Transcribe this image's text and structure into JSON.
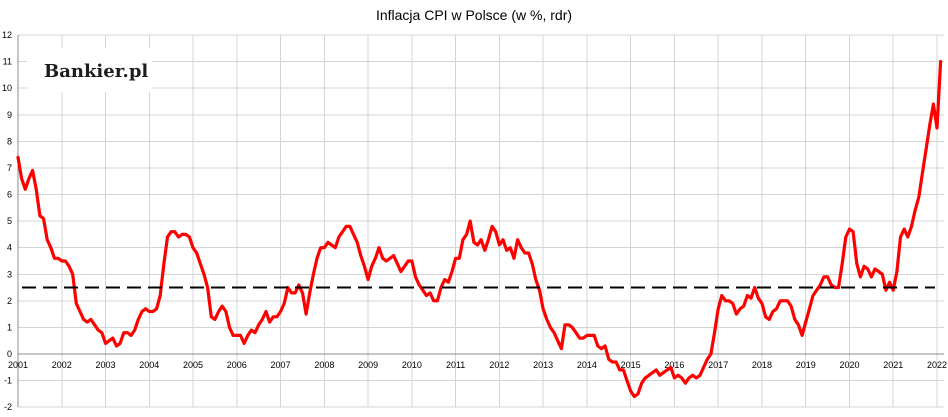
{
  "chart_data": {
    "type": "line",
    "title": "Inflacja CPI w Polsce (w %, rdr)",
    "brand_logo": "Bankier.pl",
    "xlabel": "",
    "ylabel": "",
    "ylim": [
      -2,
      12
    ],
    "yticks": [
      "12",
      "11",
      "10",
      "9",
      "8",
      "7",
      "6",
      "5",
      "4",
      "3",
      "2",
      "1",
      "0",
      "-1",
      "-2"
    ],
    "xticks": [
      "2001",
      "2002",
      "2003",
      "2004",
      "2005",
      "2006",
      "2007",
      "2008",
      "2009",
      "2010",
      "2011",
      "2012",
      "2013",
      "2014",
      "2015",
      "2016",
      "2017",
      "2018",
      "2019",
      "2020",
      "2021",
      "2022"
    ],
    "x_start_year": 2001,
    "grid": true,
    "series": [
      {
        "color": "#ff0000",
        "style": "solid",
        "values": [
          7.4,
          6.6,
          6.2,
          6.6,
          6.9,
          6.2,
          5.2,
          5.1,
          4.3,
          4.0,
          3.6,
          3.6,
          3.5,
          3.5,
          3.3,
          3.0,
          1.9,
          1.6,
          1.3,
          1.2,
          1.3,
          1.1,
          0.9,
          0.8,
          0.4,
          0.5,
          0.6,
          0.3,
          0.4,
          0.8,
          0.8,
          0.7,
          0.9,
          1.3,
          1.6,
          1.7,
          1.6,
          1.6,
          1.7,
          2.2,
          3.4,
          4.4,
          4.6,
          4.6,
          4.4,
          4.5,
          4.5,
          4.4,
          4.0,
          3.8,
          3.4,
          3.0,
          2.5,
          1.4,
          1.3,
          1.6,
          1.8,
          1.6,
          1.0,
          0.7,
          0.7,
          0.7,
          0.4,
          0.7,
          0.9,
          0.8,
          1.1,
          1.3,
          1.6,
          1.2,
          1.4,
          1.4,
          1.6,
          1.9,
          2.5,
          2.3,
          2.3,
          2.6,
          2.3,
          1.5,
          2.3,
          3.0,
          3.6,
          4.0,
          4.0,
          4.2,
          4.1,
          4.0,
          4.4,
          4.6,
          4.8,
          4.8,
          4.5,
          4.2,
          3.7,
          3.3,
          2.8,
          3.3,
          3.6,
          4.0,
          3.6,
          3.5,
          3.6,
          3.7,
          3.4,
          3.1,
          3.3,
          3.5,
          3.5,
          2.9,
          2.6,
          2.4,
          2.2,
          2.3,
          2.0,
          2.0,
          2.5,
          2.8,
          2.7,
          3.1,
          3.6,
          3.6,
          4.3,
          4.5,
          5.0,
          4.2,
          4.1,
          4.3,
          3.9,
          4.3,
          4.8,
          4.6,
          4.1,
          4.3,
          3.9,
          4.0,
          3.6,
          4.3,
          4.0,
          3.8,
          3.8,
          3.4,
          2.8,
          2.4,
          1.7,
          1.3,
          1.0,
          0.8,
          0.5,
          0.2,
          1.1,
          1.1,
          1.0,
          0.8,
          0.6,
          0.6,
          0.7,
          0.7,
          0.7,
          0.3,
          0.2,
          0.3,
          -0.2,
          -0.3,
          -0.3,
          -0.6,
          -0.6,
          -1.0,
          -1.4,
          -1.6,
          -1.5,
          -1.1,
          -0.9,
          -0.8,
          -0.7,
          -0.6,
          -0.8,
          -0.7,
          -0.6,
          -0.5,
          -0.9,
          -0.8,
          -0.9,
          -1.1,
          -0.9,
          -0.8,
          -0.9,
          -0.8,
          -0.5,
          -0.2,
          0.0,
          0.8,
          1.7,
          2.2,
          2.0,
          2.0,
          1.9,
          1.5,
          1.7,
          1.8,
          2.2,
          2.1,
          2.5,
          2.1,
          1.9,
          1.4,
          1.3,
          1.6,
          1.7,
          2.0,
          2.0,
          2.0,
          1.8,
          1.3,
          1.1,
          0.7,
          1.2,
          1.7,
          2.2,
          2.4,
          2.6,
          2.9,
          2.9,
          2.6,
          2.5,
          2.5,
          3.4,
          4.4,
          4.7,
          4.6,
          3.4,
          2.9,
          3.3,
          3.2,
          2.9,
          3.2,
          3.1,
          3.0,
          2.4,
          2.7,
          2.4,
          3.1,
          4.4,
          4.7,
          4.4,
          4.8,
          5.4,
          5.9,
          6.8,
          7.7,
          8.6,
          9.4,
          8.5,
          11.0
        ]
      },
      {
        "color": "#000000",
        "style": "dashed",
        "values": [
          2.5,
          2.5
        ]
      }
    ]
  }
}
